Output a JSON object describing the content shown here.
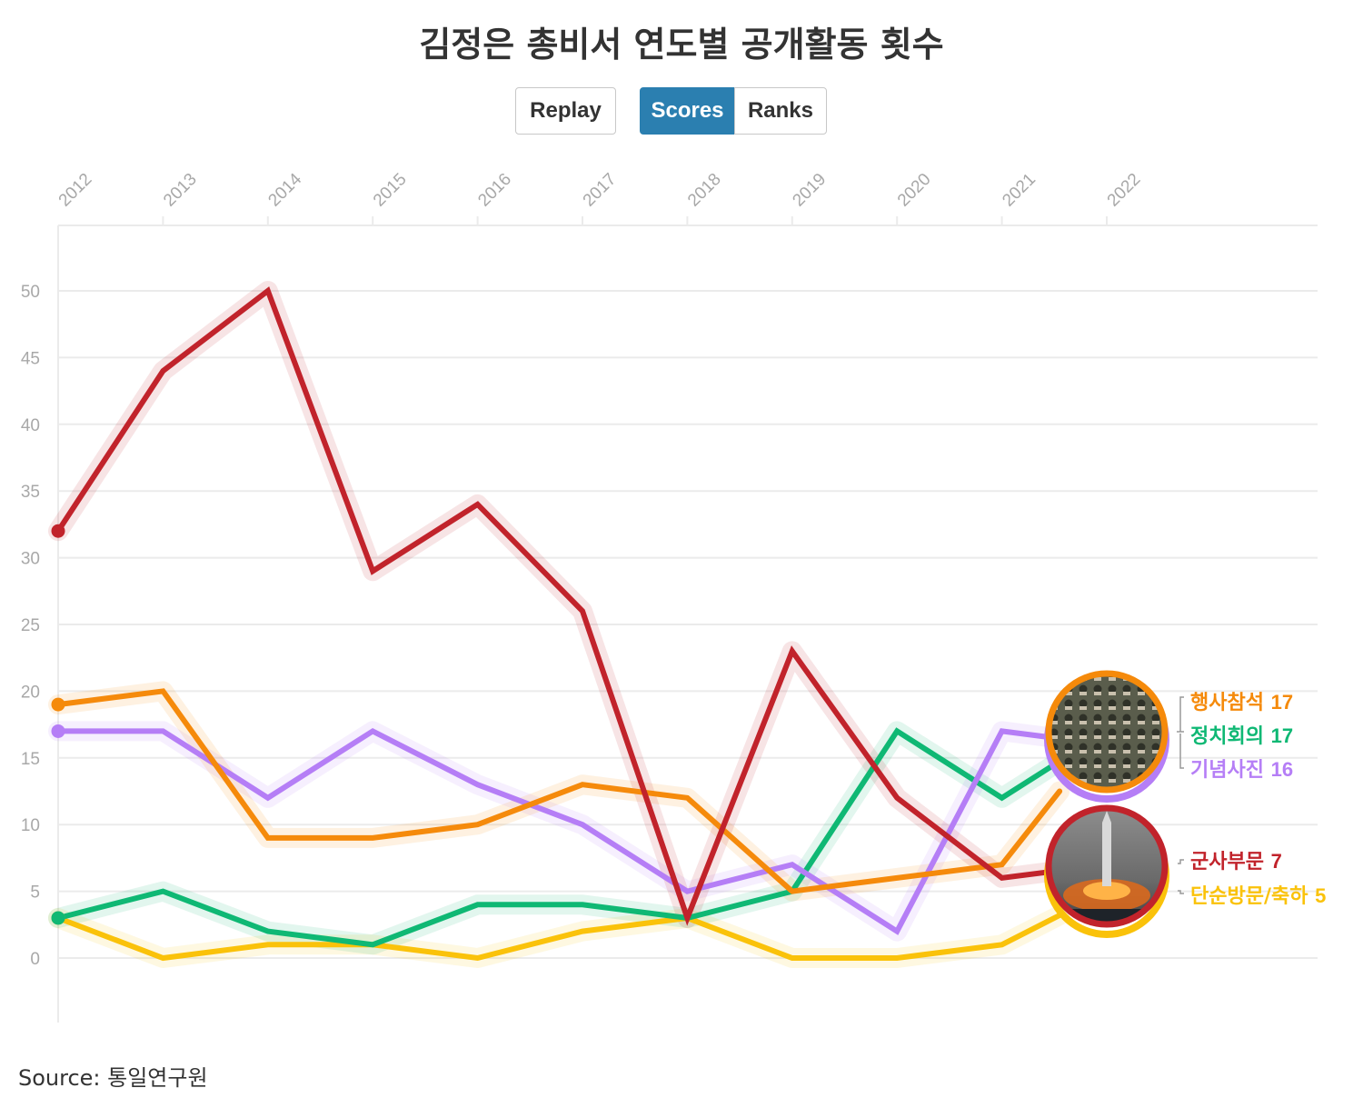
{
  "title": "김정은 총비서 연도별 공개활동 횟수",
  "controls": {
    "replay": "Replay",
    "scores": "Scores",
    "ranks": "Ranks",
    "active": "Scores"
  },
  "source": "Source: 통일연구원",
  "chart_data": {
    "type": "line",
    "title": "김정은 총비서 연도별 공개활동 횟수",
    "x": [
      "2012",
      "2013",
      "2014",
      "2015",
      "2016",
      "2017",
      "2018",
      "2019",
      "2020",
      "2021",
      "2022"
    ],
    "ylim": [
      0,
      55
    ],
    "y_ticks": [
      0,
      5,
      10,
      15,
      20,
      25,
      30,
      35,
      40,
      45,
      50
    ],
    "grid": true,
    "series": [
      {
        "name": "군사부문",
        "color": "#c1232b",
        "values": [
          32,
          44,
          50,
          29,
          34,
          26,
          3,
          23,
          12,
          6,
          7
        ]
      },
      {
        "name": "행사참석",
        "color": "#f58a0b",
        "values": [
          19,
          20,
          9,
          9,
          10,
          13,
          12,
          5,
          6,
          7,
          17
        ]
      },
      {
        "name": "기념사진",
        "color": "#b57ef6",
        "values": [
          17,
          17,
          12,
          17,
          13,
          10,
          5,
          7,
          2,
          17,
          16
        ]
      },
      {
        "name": "정치회의",
        "color": "#0fb874",
        "values": [
          3,
          5,
          2,
          1,
          4,
          4,
          3,
          5,
          17,
          12,
          17
        ]
      },
      {
        "name": "단순방문/축하",
        "color": "#fac20a",
        "values": [
          3,
          0,
          1,
          1,
          0,
          2,
          3,
          0,
          0,
          1,
          5
        ]
      }
    ],
    "end_labels": [
      {
        "name": "행사참석",
        "value": "17"
      },
      {
        "name": "정치회의",
        "value": "17"
      },
      {
        "name": "기념사진",
        "value": "16"
      },
      {
        "name": "군사부문",
        "value": "7"
      },
      {
        "name": "단순방문/축하",
        "value": "5"
      }
    ]
  }
}
